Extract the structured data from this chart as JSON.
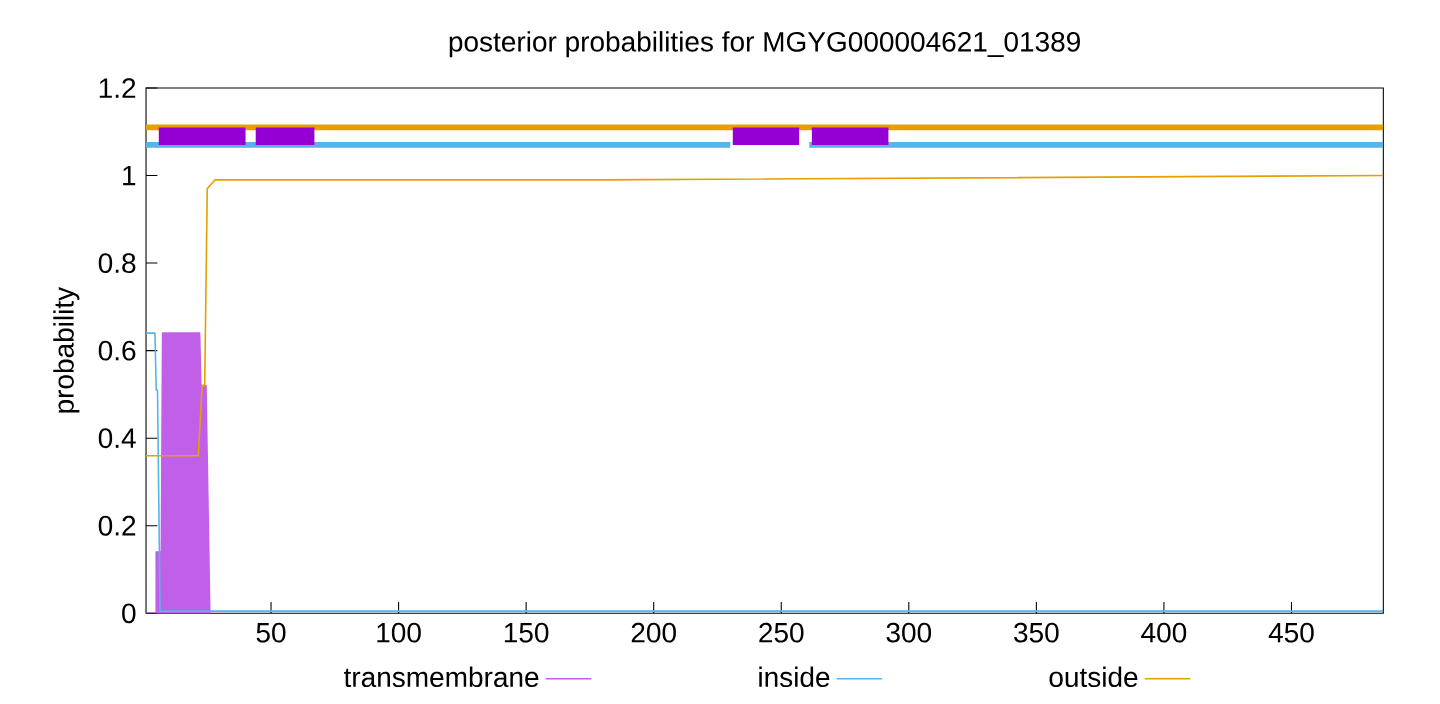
{
  "chart_data": {
    "type": "line",
    "title": "posterior probabilities for MGYG000004621_01389",
    "ylabel": "probability",
    "xlim": [
      1,
      486
    ],
    "ylim": [
      0,
      1.2
    ],
    "xticks": [
      50,
      100,
      150,
      200,
      250,
      300,
      350,
      400,
      450
    ],
    "yticks": [
      0,
      0.2,
      0.4,
      0.6,
      0.8,
      1,
      1.2
    ],
    "grid": false,
    "legend": "bottom",
    "series": [
      {
        "name": "transmembrane",
        "type": "area",
        "color": "#c060e8",
        "x": [
          1,
          5,
          5,
          7,
          7.5,
          22,
          22.5,
          24.5,
          26
        ],
        "values": [
          0,
          0,
          0.14,
          0.14,
          0.64,
          0.64,
          0.52,
          0.52,
          0
        ]
      },
      {
        "name": "inside",
        "color": "#56b4e9",
        "x": [
          1,
          4.5,
          5,
          5.5,
          6.5,
          486
        ],
        "values": [
          0.64,
          0.64,
          0.51,
          0.51,
          0.005,
          0.005
        ]
      },
      {
        "name": "outside",
        "color": "#e69f00",
        "x": [
          1,
          21.5,
          23,
          24,
          25,
          28,
          180,
          486
        ],
        "values": [
          0.36,
          0.36,
          0.52,
          0.52,
          0.97,
          0.99,
          0.99,
          1
        ]
      },
      {
        "color": "#e69f00",
        "x": [
          1,
          486
        ],
        "values": [
          1.11,
          1.11
        ]
      },
      {
        "color": "#56b4e9",
        "x": [
          1,
          230,
          245,
          261,
          486
        ],
        "values": [
          1.07,
          1.07,
          null,
          1.07,
          1.07
        ]
      },
      {
        "type": "area",
        "color": "#9400d3",
        "x": [
          6,
          6,
          40,
          40,
          44,
          44,
          67,
          67,
          231,
          231,
          257,
          257,
          262,
          262,
          292,
          292
        ],
        "values": [
          1.07,
          1.11,
          1.11,
          1.07,
          1.07,
          1.11,
          1.11,
          1.07,
          1.07,
          1.11,
          1.11,
          1.07,
          1.07,
          1.11,
          1.11,
          1.07
        ]
      }
    ]
  }
}
